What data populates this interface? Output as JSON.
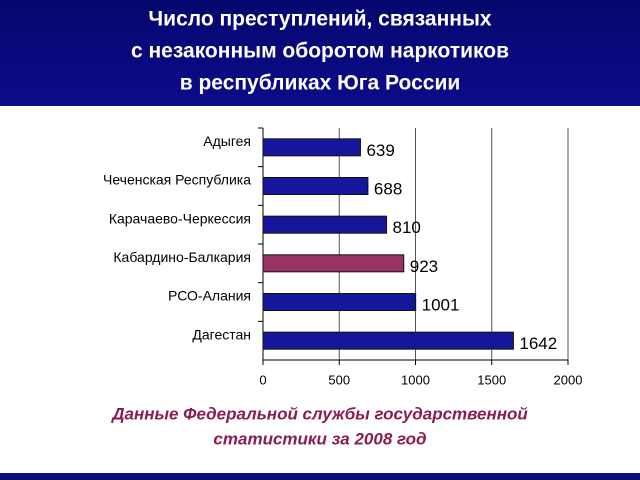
{
  "chart_data": {
    "type": "bar",
    "orientation": "horizontal",
    "title": [
      "Число преступлений, связанных",
      "с незаконным оборотом наркотиков",
      "в республиках Юга России"
    ],
    "note": [
      "Данные Федеральной службы государственной",
      "статистики за 2008 год"
    ],
    "categories": [
      "Адыгея",
      "Чеченская Республика",
      "Карачаево-Черкессия",
      "Кабардино-Балкария",
      "РСО-Алания",
      "Дагестан"
    ],
    "values": [
      639,
      688,
      810,
      923,
      1001,
      1642
    ],
    "colors": [
      "#16169a",
      "#16169a",
      "#16169a",
      "#993366",
      "#16169a",
      "#16169a"
    ],
    "xlim": [
      0,
      2000
    ],
    "xticks": [
      0,
      500,
      1000,
      1500,
      2000
    ],
    "grid": true
  }
}
